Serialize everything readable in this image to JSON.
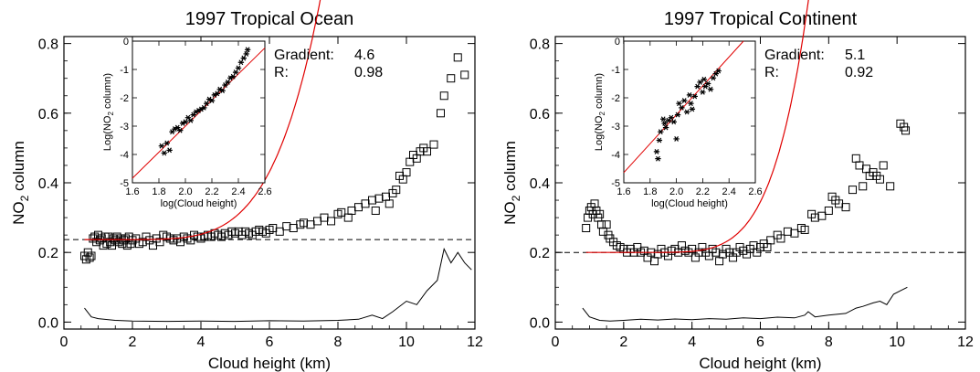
{
  "chart_data": [
    {
      "type": "scatter",
      "title": "1997 Tropical Ocean",
      "xlabel": "Cloud height (km)",
      "ylabel": "NO2 column",
      "xlim": [
        0,
        12
      ],
      "ylim": [
        -0.02,
        0.82
      ],
      "xticks": [
        "0",
        "2",
        "4",
        "6",
        "8",
        "10",
        "12"
      ],
      "yticks": [
        "0.0",
        "0.2",
        "0.4",
        "0.6",
        "0.8"
      ],
      "baseline": 0.237,
      "fit": {
        "a": 0.237,
        "b": 0.00145,
        "p": 4.6,
        "x0": 1.3
      },
      "gradient_label": "Gradient:",
      "gradient": "4.6",
      "r_label": "R:",
      "r": "0.98",
      "squares": [
        [
          0.6,
          0.19
        ],
        [
          0.65,
          0.18
        ],
        [
          0.7,
          0.2
        ],
        [
          0.75,
          0.185
        ],
        [
          0.8,
          0.19
        ],
        [
          0.85,
          0.24
        ],
        [
          0.9,
          0.245
        ],
        [
          0.95,
          0.23
        ],
        [
          1.0,
          0.25
        ],
        [
          1.05,
          0.235
        ],
        [
          1.1,
          0.24
        ],
        [
          1.15,
          0.22
        ],
        [
          1.2,
          0.245
        ],
        [
          1.25,
          0.225
        ],
        [
          1.3,
          0.245
        ],
        [
          1.35,
          0.23
        ],
        [
          1.4,
          0.22
        ],
        [
          1.45,
          0.24
        ],
        [
          1.5,
          0.235
        ],
        [
          1.55,
          0.245
        ],
        [
          1.6,
          0.23
        ],
        [
          1.65,
          0.24
        ],
        [
          1.7,
          0.225
        ],
        [
          1.75,
          0.235
        ],
        [
          1.8,
          0.24
        ],
        [
          1.85,
          0.22
        ],
        [
          1.9,
          0.245
        ],
        [
          1.95,
          0.225
        ],
        [
          2.0,
          0.235
        ],
        [
          2.1,
          0.24
        ],
        [
          2.2,
          0.225
        ],
        [
          2.3,
          0.23
        ],
        [
          2.4,
          0.245
        ],
        [
          2.5,
          0.235
        ],
        [
          2.6,
          0.22
        ],
        [
          2.7,
          0.24
        ],
        [
          2.8,
          0.23
        ],
        [
          2.9,
          0.25
        ],
        [
          3.0,
          0.245
        ],
        [
          3.1,
          0.24
        ],
        [
          3.2,
          0.235
        ],
        [
          3.3,
          0.24
        ],
        [
          3.4,
          0.23
        ],
        [
          3.5,
          0.245
        ],
        [
          3.6,
          0.24
        ],
        [
          3.7,
          0.235
        ],
        [
          3.8,
          0.25
        ],
        [
          3.9,
          0.245
        ],
        [
          4.0,
          0.24
        ],
        [
          4.1,
          0.245
        ],
        [
          4.2,
          0.25
        ],
        [
          4.3,
          0.245
        ],
        [
          4.4,
          0.255
        ],
        [
          4.5,
          0.25
        ],
        [
          4.6,
          0.245
        ],
        [
          4.7,
          0.255
        ],
        [
          4.8,
          0.25
        ],
        [
          4.9,
          0.26
        ],
        [
          5.0,
          0.255
        ],
        [
          5.1,
          0.26
        ],
        [
          5.2,
          0.25
        ],
        [
          5.3,
          0.26
        ],
        [
          5.4,
          0.255
        ],
        [
          5.5,
          0.25
        ],
        [
          5.6,
          0.26
        ],
        [
          5.7,
          0.265
        ],
        [
          5.8,
          0.26
        ],
        [
          5.9,
          0.255
        ],
        [
          6.0,
          0.265
        ],
        [
          6.1,
          0.27
        ],
        [
          6.3,
          0.26
        ],
        [
          6.5,
          0.275
        ],
        [
          6.7,
          0.27
        ],
        [
          6.9,
          0.28
        ],
        [
          7.0,
          0.285
        ],
        [
          7.2,
          0.28
        ],
        [
          7.4,
          0.29
        ],
        [
          7.6,
          0.3
        ],
        [
          7.8,
          0.29
        ],
        [
          8.0,
          0.31
        ],
        [
          8.1,
          0.315
        ],
        [
          8.3,
          0.3
        ],
        [
          8.4,
          0.32
        ],
        [
          8.6,
          0.33
        ],
        [
          8.8,
          0.34
        ],
        [
          9.0,
          0.35
        ],
        [
          9.1,
          0.32
        ],
        [
          9.2,
          0.355
        ],
        [
          9.4,
          0.36
        ],
        [
          9.5,
          0.34
        ],
        [
          9.6,
          0.37
        ],
        [
          9.7,
          0.38
        ],
        [
          9.8,
          0.42
        ],
        [
          9.9,
          0.41
        ],
        [
          10.0,
          0.43
        ],
        [
          10.1,
          0.46
        ],
        [
          10.2,
          0.48
        ],
        [
          10.3,
          0.47
        ],
        [
          10.4,
          0.49
        ],
        [
          10.5,
          0.5
        ],
        [
          10.6,
          0.49
        ],
        [
          10.8,
          0.51
        ],
        [
          11.0,
          0.6
        ],
        [
          11.1,
          0.65
        ],
        [
          11.3,
          0.7
        ],
        [
          11.5,
          0.76
        ],
        [
          11.7,
          0.71
        ]
      ],
      "insetlabel_x": "log(Cloud height)",
      "insetlabel_y": "Log(NO2 column)",
      "inset_xticks": [
        "1.6",
        "1.8",
        "2.0",
        "2.2",
        "2.4",
        "2.6"
      ],
      "inset_yticks": [
        "0",
        "-1",
        "-2",
        "-3",
        "-4",
        "-5"
      ],
      "inset_xlim": [
        1.6,
        2.6
      ],
      "inset_ylim": [
        -5,
        0
      ],
      "inset_fit": {
        "slope": 4.6,
        "intercept": -12.2
      },
      "inset_points": [
        [
          1.82,
          -3.7
        ],
        [
          1.84,
          -3.95
        ],
        [
          1.86,
          -3.6
        ],
        [
          1.88,
          -3.85
        ],
        [
          1.9,
          -3.2
        ],
        [
          1.92,
          -3.1
        ],
        [
          1.94,
          -3.05
        ],
        [
          1.96,
          -3.15
        ],
        [
          1.98,
          -2.9
        ],
        [
          2.0,
          -2.85
        ],
        [
          2.02,
          -2.7
        ],
        [
          2.04,
          -2.8
        ],
        [
          2.06,
          -2.6
        ],
        [
          2.08,
          -2.5
        ],
        [
          2.1,
          -2.45
        ],
        [
          2.12,
          -2.4
        ],
        [
          2.14,
          -2.35
        ],
        [
          2.16,
          -2.2
        ],
        [
          2.18,
          -2.05
        ],
        [
          2.2,
          -2.1
        ],
        [
          2.22,
          -1.9
        ],
        [
          2.24,
          -1.85
        ],
        [
          2.26,
          -1.7
        ],
        [
          2.28,
          -1.75
        ],
        [
          2.3,
          -1.55
        ],
        [
          2.32,
          -1.45
        ],
        [
          2.34,
          -1.3
        ],
        [
          2.36,
          -1.25
        ],
        [
          2.38,
          -1.1
        ],
        [
          2.4,
          -0.95
        ],
        [
          2.42,
          -0.75
        ],
        [
          2.44,
          -0.6
        ],
        [
          2.46,
          -0.45
        ],
        [
          2.47,
          -0.3
        ]
      ],
      "line": [
        [
          0.6,
          0.04
        ],
        [
          0.8,
          0.015
        ],
        [
          1.0,
          0.01
        ],
        [
          1.5,
          0.005
        ],
        [
          2.0,
          0.003
        ],
        [
          3.0,
          0.002
        ],
        [
          4.0,
          0.003
        ],
        [
          5.0,
          0.002
        ],
        [
          6.0,
          0.004
        ],
        [
          7.0,
          0.003
        ],
        [
          8.0,
          0.005
        ],
        [
          8.6,
          0.008
        ],
        [
          9.0,
          0.02
        ],
        [
          9.3,
          0.01
        ],
        [
          9.6,
          0.03
        ],
        [
          10.0,
          0.06
        ],
        [
          10.3,
          0.05
        ],
        [
          10.6,
          0.09
        ],
        [
          10.9,
          0.12
        ],
        [
          11.1,
          0.21
        ],
        [
          11.3,
          0.17
        ],
        [
          11.5,
          0.2
        ],
        [
          11.7,
          0.17
        ],
        [
          11.9,
          0.15
        ]
      ]
    },
    {
      "type": "scatter",
      "title": "1997 Tropical Continent",
      "xlabel": "Cloud height (km)",
      "ylabel": "NO2 column",
      "xlim": [
        0,
        12
      ],
      "ylim": [
        -0.02,
        0.82
      ],
      "xticks": [
        "0",
        "2",
        "4",
        "6",
        "8",
        "10",
        "12"
      ],
      "yticks": [
        "0.0",
        "0.2",
        "0.4",
        "0.6",
        "0.8"
      ],
      "baseline": 0.2,
      "fit": {
        "a": 0.2,
        "b": 0.00295,
        "p": 5.1,
        "x0": 2.2
      },
      "gradient_label": "Gradient:",
      "gradient": "5.1",
      "r_label": "R:",
      "r": "0.92",
      "squares": [
        [
          0.9,
          0.27
        ],
        [
          0.95,
          0.3
        ],
        [
          1.0,
          0.32
        ],
        [
          1.05,
          0.33
        ],
        [
          1.1,
          0.31
        ],
        [
          1.15,
          0.34
        ],
        [
          1.2,
          0.32
        ],
        [
          1.25,
          0.3
        ],
        [
          1.3,
          0.31
        ],
        [
          1.35,
          0.28
        ],
        [
          1.4,
          0.26
        ],
        [
          1.5,
          0.28
        ],
        [
          1.55,
          0.25
        ],
        [
          1.6,
          0.24
        ],
        [
          1.7,
          0.23
        ],
        [
          1.8,
          0.22
        ],
        [
          1.9,
          0.215
        ],
        [
          2.0,
          0.21
        ],
        [
          2.1,
          0.2
        ],
        [
          2.2,
          0.21
        ],
        [
          2.3,
          0.2
        ],
        [
          2.4,
          0.215
        ],
        [
          2.5,
          0.2
        ],
        [
          2.6,
          0.205
        ],
        [
          2.7,
          0.185
        ],
        [
          2.8,
          0.2
        ],
        [
          2.9,
          0.175
        ],
        [
          3.0,
          0.195
        ],
        [
          3.1,
          0.21
        ],
        [
          3.2,
          0.2
        ],
        [
          3.3,
          0.19
        ],
        [
          3.4,
          0.205
        ],
        [
          3.5,
          0.21
        ],
        [
          3.6,
          0.2
        ],
        [
          3.7,
          0.22
        ],
        [
          3.8,
          0.205
        ],
        [
          3.9,
          0.2
        ],
        [
          4.0,
          0.21
        ],
        [
          4.1,
          0.185
        ],
        [
          4.2,
          0.2
        ],
        [
          4.3,
          0.215
        ],
        [
          4.4,
          0.2
        ],
        [
          4.5,
          0.19
        ],
        [
          4.6,
          0.21
        ],
        [
          4.7,
          0.2
        ],
        [
          4.8,
          0.175
        ],
        [
          4.9,
          0.195
        ],
        [
          5.0,
          0.21
        ],
        [
          5.1,
          0.2
        ],
        [
          5.2,
          0.185
        ],
        [
          5.3,
          0.2
        ],
        [
          5.4,
          0.215
        ],
        [
          5.5,
          0.205
        ],
        [
          5.6,
          0.195
        ],
        [
          5.7,
          0.21
        ],
        [
          5.8,
          0.22
        ],
        [
          5.9,
          0.2
        ],
        [
          6.0,
          0.215
        ],
        [
          6.1,
          0.225
        ],
        [
          6.2,
          0.215
        ],
        [
          6.3,
          0.235
        ],
        [
          6.5,
          0.25
        ],
        [
          6.6,
          0.24
        ],
        [
          6.8,
          0.26
        ],
        [
          7.0,
          0.255
        ],
        [
          7.2,
          0.27
        ],
        [
          7.3,
          0.265
        ],
        [
          7.5,
          0.31
        ],
        [
          7.6,
          0.3
        ],
        [
          7.8,
          0.305
        ],
        [
          8.0,
          0.32
        ],
        [
          8.1,
          0.36
        ],
        [
          8.2,
          0.35
        ],
        [
          8.3,
          0.34
        ],
        [
          8.5,
          0.33
        ],
        [
          8.7,
          0.38
        ],
        [
          8.8,
          0.47
        ],
        [
          8.9,
          0.45
        ],
        [
          9.0,
          0.39
        ],
        [
          9.1,
          0.44
        ],
        [
          9.2,
          0.42
        ],
        [
          9.3,
          0.43
        ],
        [
          9.4,
          0.42
        ],
        [
          9.5,
          0.41
        ],
        [
          9.6,
          0.45
        ],
        [
          9.8,
          0.39
        ],
        [
          10.1,
          0.57
        ],
        [
          10.2,
          0.56
        ],
        [
          10.25,
          0.55
        ]
      ],
      "insetlabel_x": "log(Cloud height)",
      "insetlabel_y": "Log(NO2 column)",
      "inset_xticks": [
        "1.6",
        "1.8",
        "2.0",
        "2.2",
        "2.4",
        "2.6"
      ],
      "inset_yticks": [
        "0",
        "-1",
        "-2",
        "-3",
        "-4",
        "-5"
      ],
      "inset_xlim": [
        1.6,
        2.6
      ],
      "inset_ylim": [
        -5,
        0
      ],
      "inset_fit": {
        "slope": 5.1,
        "intercept": -12.8
      },
      "inset_points": [
        [
          1.85,
          -3.9
        ],
        [
          1.86,
          -4.15
        ],
        [
          1.87,
          -3.5
        ],
        [
          1.88,
          -3.2
        ],
        [
          1.9,
          -2.75
        ],
        [
          1.91,
          -2.9
        ],
        [
          1.92,
          -3.05
        ],
        [
          1.94,
          -2.8
        ],
        [
          1.96,
          -2.7
        ],
        [
          1.98,
          -2.85
        ],
        [
          2.0,
          -3.45
        ],
        [
          2.01,
          -2.6
        ],
        [
          2.02,
          -2.2
        ],
        [
          2.04,
          -2.35
        ],
        [
          2.06,
          -2.1
        ],
        [
          2.08,
          -2.5
        ],
        [
          2.1,
          -1.9
        ],
        [
          2.11,
          -2.2
        ],
        [
          2.12,
          -2.4
        ],
        [
          2.14,
          -1.95
        ],
        [
          2.16,
          -1.6
        ],
        [
          2.18,
          -1.45
        ],
        [
          2.2,
          -1.8
        ],
        [
          2.21,
          -1.35
        ],
        [
          2.22,
          -1.6
        ],
        [
          2.24,
          -1.5
        ],
        [
          2.26,
          -1.7
        ],
        [
          2.28,
          -1.3
        ],
        [
          2.3,
          -1.15
        ],
        [
          2.32,
          -1.05
        ]
      ],
      "line": [
        [
          0.8,
          0.04
        ],
        [
          1.0,
          0.015
        ],
        [
          1.3,
          0.005
        ],
        [
          1.6,
          0.003
        ],
        [
          2.0,
          0.005
        ],
        [
          2.5,
          0.008
        ],
        [
          3.0,
          0.006
        ],
        [
          3.5,
          0.009
        ],
        [
          4.0,
          0.007
        ],
        [
          4.5,
          0.01
        ],
        [
          5.0,
          0.008
        ],
        [
          5.5,
          0.012
        ],
        [
          6.0,
          0.01
        ],
        [
          6.5,
          0.014
        ],
        [
          7.0,
          0.012
        ],
        [
          7.3,
          0.02
        ],
        [
          7.4,
          0.03
        ],
        [
          7.6,
          0.015
        ],
        [
          8.0,
          0.02
        ],
        [
          8.5,
          0.025
        ],
        [
          8.8,
          0.04
        ],
        [
          9.0,
          0.045
        ],
        [
          9.3,
          0.055
        ],
        [
          9.5,
          0.06
        ],
        [
          9.7,
          0.05
        ],
        [
          9.9,
          0.08
        ],
        [
          10.1,
          0.09
        ],
        [
          10.3,
          0.1
        ]
      ]
    }
  ]
}
